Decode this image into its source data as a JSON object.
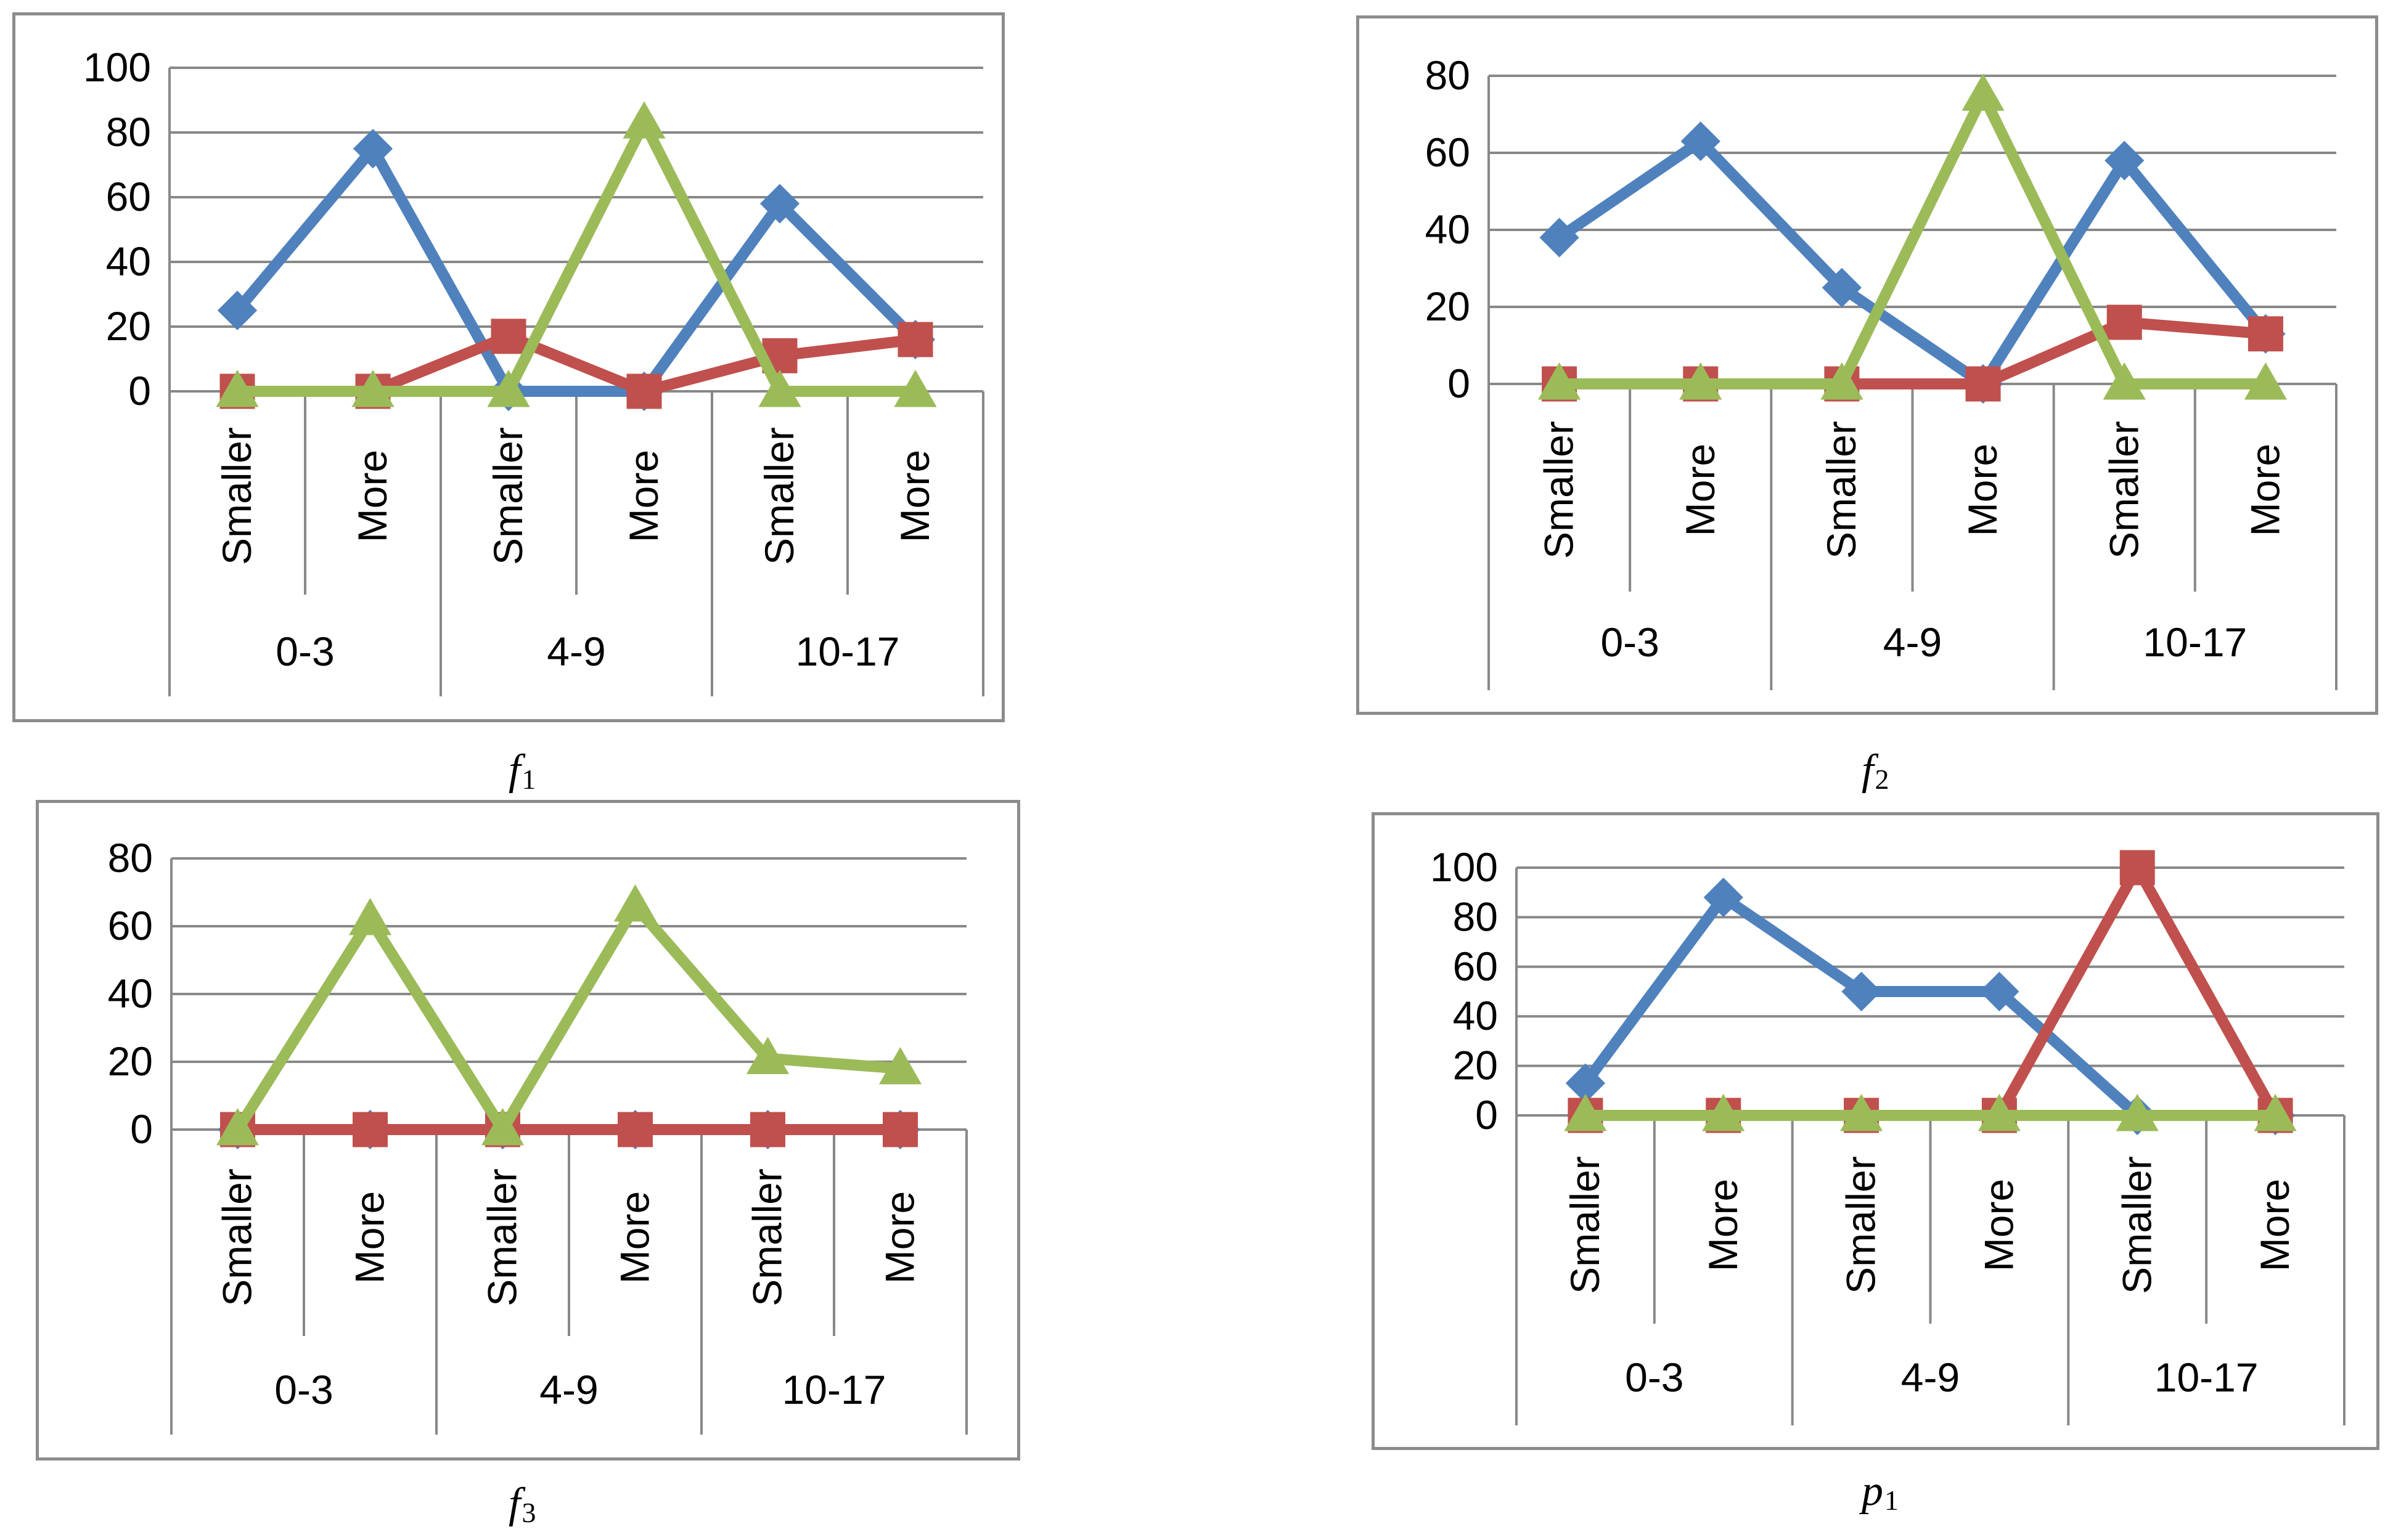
{
  "colors": {
    "series1": "#4f81bd",
    "series2": "#c0504d",
    "series3": "#9bbb59",
    "grid": "#888888",
    "axis": "#888888"
  },
  "chart_data": [
    {
      "type": "line",
      "caption": {
        "symbol": "f",
        "sub": "1"
      },
      "categories": [
        "Smaller",
        "More",
        "Smaller",
        "More",
        "Smaller",
        "More"
      ],
      "groups": [
        "0-3",
        "4-9",
        "10-17"
      ],
      "ylim": [
        0,
        100
      ],
      "yticks": [
        0,
        20,
        40,
        60,
        80,
        100
      ],
      "series": [
        {
          "name": "series1",
          "marker": "diamond",
          "values": [
            25,
            75,
            0,
            0,
            58,
            16
          ]
        },
        {
          "name": "series2",
          "marker": "square",
          "values": [
            0,
            0,
            17,
            0,
            11,
            16
          ]
        },
        {
          "name": "series3",
          "marker": "triangle",
          "values": [
            0,
            0,
            0,
            83,
            0,
            0
          ]
        }
      ]
    },
    {
      "type": "line",
      "caption": {
        "symbol": "f",
        "sub": "2"
      },
      "categories": [
        "Smaller",
        "More",
        "Smaller",
        "More",
        "Smaller",
        "More"
      ],
      "groups": [
        "0-3",
        "4-9",
        "10-17"
      ],
      "ylim": [
        0,
        80
      ],
      "yticks": [
        0,
        20,
        40,
        60,
        80
      ],
      "series": [
        {
          "name": "series1",
          "marker": "diamond",
          "values": [
            38,
            63,
            25,
            0,
            58,
            13
          ]
        },
        {
          "name": "series2",
          "marker": "square",
          "values": [
            0,
            0,
            0,
            0,
            16,
            13
          ]
        },
        {
          "name": "series3",
          "marker": "triangle",
          "values": [
            0,
            0,
            0,
            75,
            0,
            0
          ]
        }
      ]
    },
    {
      "type": "line",
      "caption": {
        "symbol": "f",
        "sub": "3"
      },
      "categories": [
        "Smaller",
        "More",
        "Smaller",
        "More",
        "Smaller",
        "More"
      ],
      "groups": [
        "0-3",
        "4-9",
        "10-17"
      ],
      "ylim": [
        0,
        80
      ],
      "yticks": [
        0,
        20,
        40,
        60,
        80
      ],
      "series": [
        {
          "name": "series1",
          "marker": "diamond",
          "values": [
            0,
            0,
            0,
            0,
            0,
            0
          ]
        },
        {
          "name": "series2",
          "marker": "square",
          "values": [
            0,
            0,
            0,
            0,
            0,
            0
          ]
        },
        {
          "name": "series3",
          "marker": "triangle",
          "values": [
            0,
            62,
            0,
            66,
            21,
            18
          ]
        }
      ]
    },
    {
      "type": "line",
      "caption": {
        "symbol": "p",
        "sub": "1"
      },
      "categories": [
        "Smaller",
        "More",
        "Smaller",
        "More",
        "Smaller",
        "More"
      ],
      "groups": [
        "0-3",
        "4-9",
        "10-17"
      ],
      "ylim": [
        0,
        100
      ],
      "yticks": [
        0,
        20,
        40,
        60,
        80,
        100
      ],
      "series": [
        {
          "name": "series1",
          "marker": "diamond",
          "values": [
            13,
            88,
            50,
            50,
            0,
            0
          ]
        },
        {
          "name": "series2",
          "marker": "square",
          "values": [
            0,
            0,
            0,
            0,
            100,
            0
          ]
        },
        {
          "name": "series3",
          "marker": "triangle",
          "values": [
            0,
            0,
            0,
            0,
            0,
            0
          ]
        }
      ]
    }
  ]
}
